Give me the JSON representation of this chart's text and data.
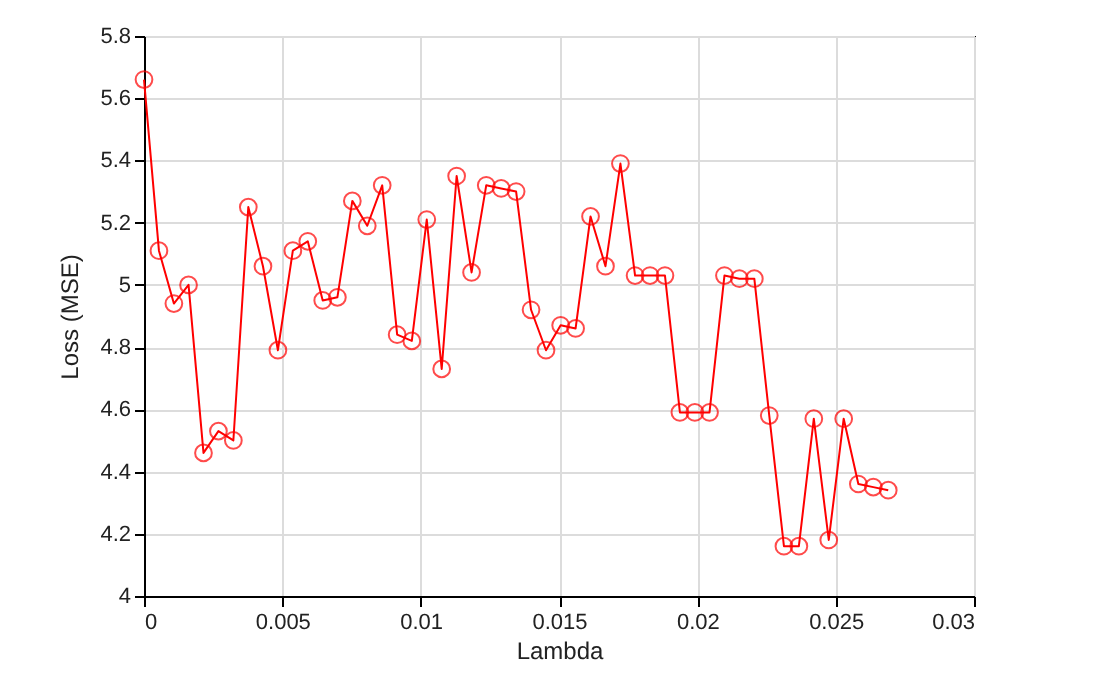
{
  "chart_data": {
    "type": "line",
    "xlabel": "Lambda",
    "ylabel": "Loss (MSE)",
    "x": [
      0,
      0.00054,
      0.00108,
      0.00161,
      0.00215,
      0.00269,
      0.00323,
      0.00377,
      0.0043,
      0.00484,
      0.00538,
      0.00592,
      0.00646,
      0.00699,
      0.00753,
      0.00807,
      0.00861,
      0.00915,
      0.00968,
      0.01022,
      0.01076,
      0.0113,
      0.01184,
      0.01237,
      0.01291,
      0.01345,
      0.01399,
      0.01453,
      0.01506,
      0.0156,
      0.01614,
      0.01668,
      0.01722,
      0.01775,
      0.01829,
      0.01883,
      0.01937,
      0.01991,
      0.02044,
      0.02098,
      0.02152,
      0.02206,
      0.0226,
      0.02313,
      0.02367,
      0.02421,
      0.02475,
      0.02529,
      0.02582,
      0.02636,
      0.0269
    ],
    "series": [
      {
        "color": "#ff0000",
        "values": [
          5.66,
          5.11,
          4.94,
          5.0,
          4.46,
          4.53,
          4.5,
          5.25,
          5.06,
          4.79,
          5.11,
          5.14,
          4.95,
          4.96,
          5.27,
          5.19,
          5.32,
          4.84,
          4.82,
          5.21,
          4.73,
          5.35,
          5.04,
          5.32,
          5.31,
          5.3,
          4.92,
          4.79,
          4.87,
          4.86,
          5.22,
          5.06,
          5.39,
          5.03,
          5.03,
          5.03,
          4.59,
          4.59,
          4.59,
          5.03,
          5.02,
          5.02,
          4.58,
          4.16,
          4.16,
          4.57,
          4.18,
          4.57,
          4.36,
          4.35,
          4.34
        ]
      }
    ],
    "xlim": [
      0,
      0.03
    ],
    "xticks": [
      0,
      0.005,
      0.01,
      0.015,
      0.02,
      0.025,
      0.03
    ],
    "ylim": [
      4,
      5.8
    ],
    "yticks": [
      4,
      4.2,
      4.4,
      4.6,
      4.8,
      5,
      5.2,
      5.4,
      5.6,
      5.8
    ],
    "grid": true,
    "marker": "circle",
    "line_style": "solid"
  }
}
